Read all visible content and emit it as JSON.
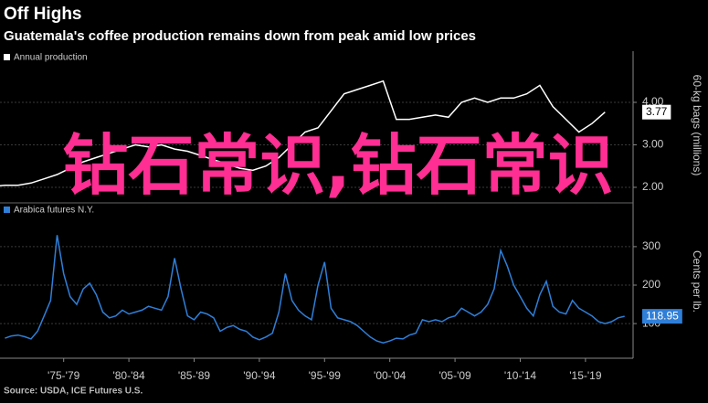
{
  "title": "Off Highs",
  "subtitle": "Guatemala's coffee production remains down from peak amid low prices",
  "source": "Source: USDA, ICE Futures U.S.",
  "watermark": "钻石常识,钻石常识",
  "chart_data": [
    {
      "type": "line",
      "ylabel": "60-kg bags (millions)",
      "xlim": [
        1972.62,
        2021.15
      ],
      "ylim": [
        1.72,
        4.86
      ],
      "yticks": [
        {
          "value": 2,
          "label": "2.00"
        },
        {
          "value": 3,
          "label": "3.00"
        },
        {
          "value": 4,
          "label": "4.00"
        }
      ],
      "grid": true,
      "series": [
        {
          "name": "Annual production",
          "color": "#ffffff",
          "x": [
            1972,
            1973,
            1974,
            1975,
            1976,
            1977,
            1978,
            1979,
            1980,
            1981,
            1982,
            1983,
            1984,
            1985,
            1986,
            1987,
            1988,
            1989,
            1990,
            1991,
            1992,
            1993,
            1994,
            1995,
            1996,
            1997,
            1998,
            1999,
            2000,
            2001,
            2002,
            2003,
            2004,
            2005,
            2006,
            2007,
            2008,
            2009,
            2010,
            2011,
            2012,
            2013,
            2014,
            2015,
            2016,
            2017,
            2018,
            2019
          ],
          "values": [
            2.02,
            2.05,
            2.05,
            2.1,
            2.2,
            2.3,
            2.45,
            2.6,
            2.7,
            2.8,
            2.9,
            3.0,
            2.95,
            3.0,
            2.9,
            2.85,
            2.75,
            2.65,
            2.55,
            2.45,
            2.4,
            2.5,
            2.7,
            3.0,
            3.3,
            3.4,
            3.8,
            4.2,
            4.3,
            4.4,
            4.5,
            3.6,
            3.6,
            3.65,
            3.7,
            3.65,
            4.0,
            4.1,
            4.0,
            4.1,
            4.1,
            4.2,
            4.4,
            3.9,
            3.6,
            3.3,
            3.5,
            3.77
          ]
        }
      ]
    },
    {
      "type": "line",
      "ylabel": "Cents per lb.",
      "xlim": [
        1972.62,
        2021.15
      ],
      "ylim": [
        10,
        371
      ],
      "yticks": [
        100,
        200,
        300
      ],
      "xticks": [
        {
          "value": 1977.5,
          "label": "'75-'79"
        },
        {
          "value": 1982.5,
          "label": "'80-'84"
        },
        {
          "value": 1987.5,
          "label": "'85-'89"
        },
        {
          "value": 1992.5,
          "label": "'90-'94"
        },
        {
          "value": 1997.5,
          "label": "'95-'99"
        },
        {
          "value": 2002.5,
          "label": "'00-'04"
        },
        {
          "value": 2007.5,
          "label": "'05-'09"
        },
        {
          "value": 2012.5,
          "label": "'10-'14"
        },
        {
          "value": 2017.5,
          "label": "'15-'19"
        }
      ],
      "grid": true,
      "series": [
        {
          "name": "Arabica futures N.Y.",
          "color": "#2f7fd8",
          "x": [
            1973,
            1973.5,
            1974,
            1974.5,
            1975,
            1975.5,
            1976,
            1976.5,
            1977,
            1977.5,
            1978,
            1978.5,
            1979,
            1979.5,
            1980,
            1980.5,
            1981,
            1981.5,
            1982,
            1982.5,
            1983,
            1983.5,
            1984,
            1984.5,
            1985,
            1985.5,
            1986,
            1986.5,
            1987,
            1987.5,
            1988,
            1988.5,
            1989,
            1989.5,
            1990,
            1990.5,
            1991,
            1991.5,
            1992,
            1992.5,
            1993,
            1993.5,
            1994,
            1994.5,
            1995,
            1995.5,
            1996,
            1996.5,
            1997,
            1997.5,
            1998,
            1998.5,
            1999,
            1999.5,
            2000,
            2000.5,
            2001,
            2001.5,
            2002,
            2002.5,
            2003,
            2003.5,
            2004,
            2004.5,
            2005,
            2005.5,
            2006,
            2006.5,
            2007,
            2007.5,
            2008,
            2008.5,
            2009,
            2009.5,
            2010,
            2010.5,
            2011,
            2011.5,
            2012,
            2012.5,
            2013,
            2013.5,
            2014,
            2014.5,
            2015,
            2015.5,
            2016,
            2016.5,
            2017,
            2017.5,
            2018,
            2018.5,
            2019,
            2019.5,
            2020,
            2020.5
          ],
          "values": [
            62,
            68,
            70,
            66,
            60,
            80,
            120,
            160,
            330,
            230,
            170,
            150,
            190,
            205,
            175,
            130,
            115,
            120,
            135,
            125,
            130,
            135,
            145,
            140,
            135,
            170,
            270,
            190,
            120,
            110,
            130,
            125,
            115,
            80,
            90,
            95,
            85,
            80,
            65,
            58,
            65,
            75,
            130,
            230,
            160,
            135,
            120,
            110,
            200,
            260,
            140,
            115,
            110,
            105,
            95,
            80,
            65,
            55,
            50,
            55,
            62,
            60,
            70,
            75,
            110,
            105,
            110,
            105,
            115,
            120,
            140,
            130,
            120,
            130,
            150,
            190,
            290,
            250,
            200,
            170,
            140,
            120,
            175,
            210,
            145,
            130,
            125,
            160,
            140,
            130,
            120,
            105,
            100,
            105,
            115,
            118.95
          ]
        }
      ]
    }
  ]
}
